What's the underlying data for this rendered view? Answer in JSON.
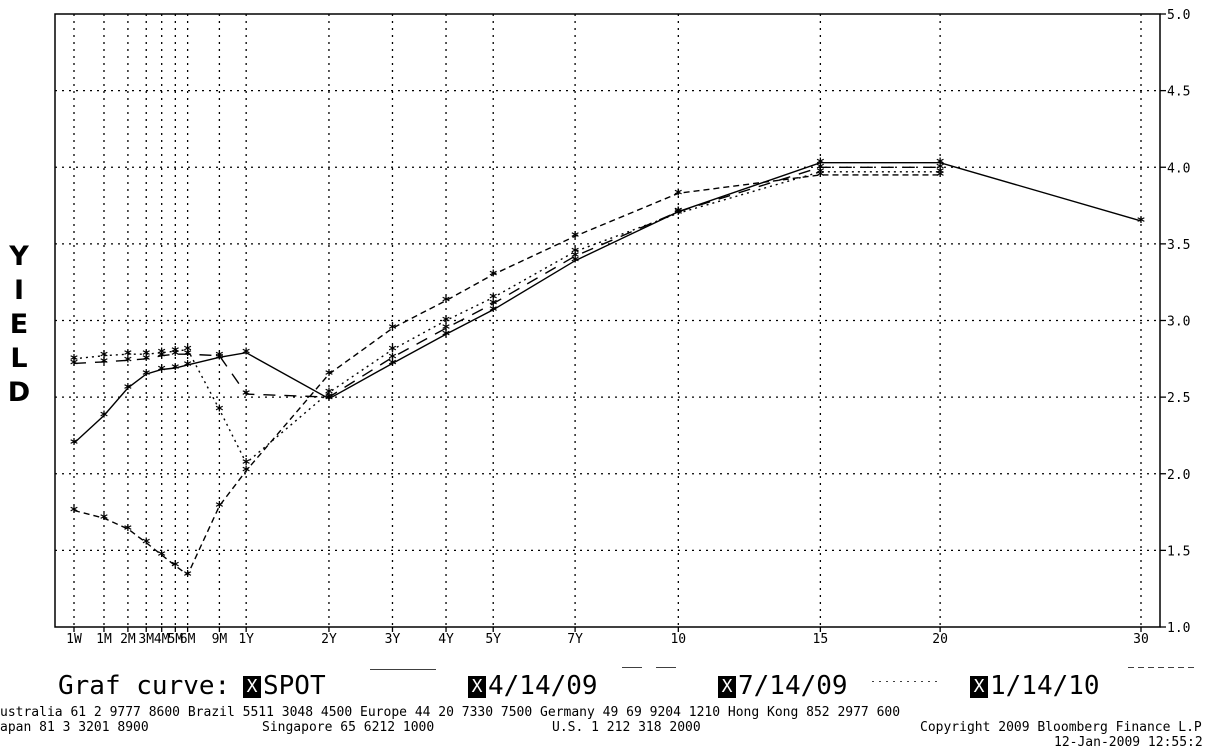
{
  "chart_data": {
    "type": "line",
    "ylabel": "YIELD",
    "ylim": [
      1.0,
      5.0
    ],
    "yticks": [
      1.0,
      1.5,
      2.0,
      2.5,
      3.0,
      3.5,
      4.0,
      4.5,
      5.0
    ],
    "ytick_labels": [
      "1.0",
      "1.5",
      "2.0",
      "2.5",
      "3.0",
      "3.5",
      "4.0",
      "4.5",
      "5.0"
    ],
    "x_tenor_years": [
      0.0192,
      0.0833,
      0.1667,
      0.25,
      0.3333,
      0.4167,
      0.5,
      0.75,
      1,
      2,
      3,
      4,
      5,
      7,
      10,
      15,
      20,
      30
    ],
    "categories": [
      "1W",
      "1M",
      "2M",
      "3M",
      "4M",
      "5M",
      "6M",
      "9M",
      "1Y",
      "2Y",
      "3Y",
      "4Y",
      "5Y",
      "7Y",
      "10",
      "15",
      "20",
      "30"
    ],
    "grid": true,
    "y_axis_side": "right",
    "legend_placement": "bottom",
    "series": [
      {
        "name": "SPOT",
        "style": "solid",
        "values": [
          2.2,
          2.38,
          2.56,
          2.65,
          2.68,
          2.69,
          2.71,
          2.76,
          2.79,
          2.49,
          2.72,
          2.91,
          3.07,
          3.39,
          3.71,
          4.03,
          4.03,
          3.65
        ]
      },
      {
        "name": "4/14/09",
        "style": "longdash",
        "values": [
          2.72,
          2.73,
          2.74,
          2.75,
          2.77,
          2.78,
          2.78,
          2.77,
          2.52,
          2.5,
          2.76,
          2.95,
          3.11,
          3.42,
          3.71,
          4.0,
          4.0,
          null
        ]
      },
      {
        "name": "7/14/09",
        "style": "dotted",
        "values": [
          2.75,
          2.77,
          2.78,
          2.78,
          2.79,
          2.8,
          2.81,
          2.42,
          2.07,
          2.53,
          2.81,
          3.0,
          3.15,
          3.45,
          3.7,
          3.97,
          3.97,
          null
        ]
      },
      {
        "name": "1/14/10",
        "style": "shortdash",
        "values": [
          1.76,
          1.71,
          1.64,
          1.55,
          1.47,
          1.4,
          1.34,
          1.79,
          2.02,
          2.65,
          2.95,
          3.13,
          3.3,
          3.55,
          3.83,
          3.95,
          3.95,
          null
        ]
      }
    ]
  },
  "legend": {
    "label": "Graf curve:",
    "box_mark": "X",
    "items": [
      {
        "name": "SPOT"
      },
      {
        "name": "4/14/09"
      },
      {
        "name": "7/14/09"
      },
      {
        "name": "1/14/10"
      }
    ]
  },
  "footer": {
    "line1": "ustralia 61 2 9777 8600 Brazil 5511 3048 4500 Europe 44 20 7330 7500 Germany 49 69 9204 1210 Hong Kong 852 2977 600",
    "line2_left": "apan 81 3 3201 8900",
    "line2_mid1": "Singapore 65 6212 1000",
    "line2_mid2": "U.S. 1 212 318 2000",
    "line2_right": "Copyright 2009 Bloomberg Finance L.P",
    "line3": "12-Jan-2009 12:55:2"
  }
}
